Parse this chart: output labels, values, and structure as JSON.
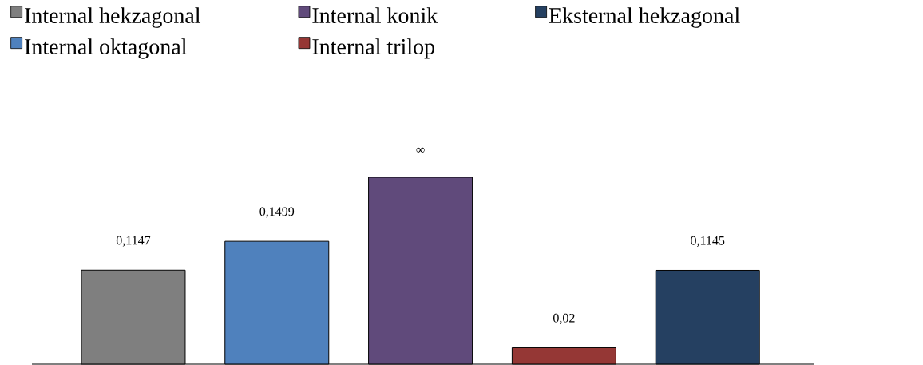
{
  "chart_data": {
    "type": "bar",
    "stacked": true,
    "legend": "top",
    "categories": [
      null,
      null,
      null,
      null,
      null
    ],
    "series": [
      {
        "name": "Internal hekzagonal",
        "color": "#7f7f7f",
        "values": [
          0.1147,
          null,
          null,
          null,
          null
        ],
        "value_labels": [
          "0,1147",
          null,
          null,
          null,
          null
        ]
      },
      {
        "name": "Internal oktagonal",
        "color": "#4f81bd",
        "values": [
          null,
          0.1499,
          null,
          null,
          null
        ],
        "value_labels": [
          null,
          "0,1499",
          null,
          null,
          null
        ]
      },
      {
        "name": "Internal konik",
        "color": "#604a7b",
        "values": [
          null,
          null,
          0.228,
          null,
          null
        ],
        "value_labels": [
          null,
          null,
          "∞",
          null,
          null
        ]
      },
      {
        "name": "Internal trilop",
        "color": "#953735",
        "values": [
          null,
          null,
          null,
          0.02,
          null
        ],
        "value_labels": [
          null,
          null,
          null,
          "0,02",
          null
        ]
      },
      {
        "name": "Eksternal hekzagonal",
        "color": "#254061",
        "values": [
          null,
          null,
          null,
          null,
          0.1145
        ],
        "value_labels": [
          null,
          null,
          null,
          null,
          "0,1145"
        ]
      }
    ]
  }
}
